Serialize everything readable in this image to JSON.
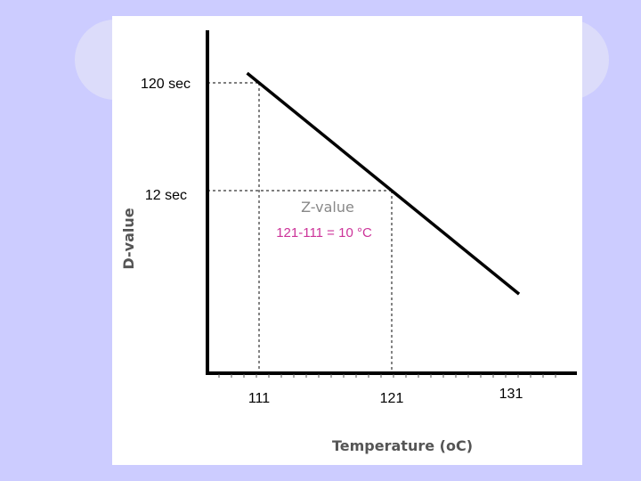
{
  "chart_data": {
    "type": "line",
    "title": "",
    "xlabel": "Temperature (oC)",
    "ylabel": "D-value",
    "x_ticks": [
      "111",
      "121",
      "131"
    ],
    "y_ticks": [
      "120 sec",
      "12 sec"
    ],
    "series": [
      {
        "x": [
          111,
          121
        ],
        "y": [
          120,
          12
        ],
        "color": "#000000"
      }
    ],
    "reference_points": [
      {
        "x": 111,
        "y": 120
      },
      {
        "x": 121,
        "y": 12
      }
    ],
    "annotations": {
      "z_label": "Z-value",
      "formula": "121-111 = 10 °C",
      "formula_color": "#cc3399"
    },
    "grid": false
  }
}
